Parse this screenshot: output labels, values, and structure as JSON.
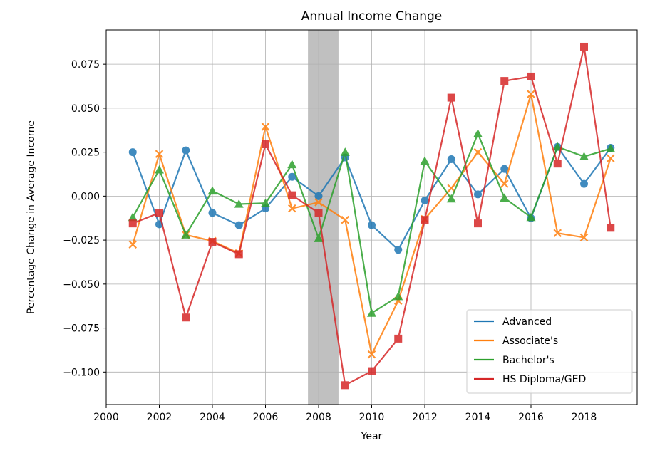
{
  "chart_data": {
    "type": "line",
    "title": "Annual Income Change",
    "xlabel": "Year",
    "ylabel": "Percentage Change in Average Income",
    "xlim": [
      2000,
      2020
    ],
    "ylim": [
      -0.1185,
      0.0945
    ],
    "x_ticks": [
      2000,
      2002,
      2004,
      2006,
      2008,
      2010,
      2012,
      2014,
      2016,
      2018
    ],
    "y_ticks": [
      -0.1,
      -0.075,
      -0.05,
      -0.025,
      0.0,
      0.025,
      0.05,
      0.075
    ],
    "y_tick_labels": [
      "−0.100",
      "−0.075",
      "−0.050",
      "−0.025",
      "0.000",
      "0.025",
      "0.050",
      "0.075"
    ],
    "grid": true,
    "legend_position": "lower-right",
    "shaded_region": {
      "x_start": 2007.6,
      "x_end": 2008.75,
      "color": "#c0c0c0"
    },
    "x": [
      2001,
      2002,
      2003,
      2004,
      2005,
      2006,
      2007,
      2008,
      2009,
      2010,
      2011,
      2012,
      2013,
      2014,
      2015,
      2016,
      2017,
      2018,
      2019
    ],
    "series": [
      {
        "name": "Advanced",
        "color": "#1f77b4",
        "marker": "circle",
        "values": [
          0.025,
          -0.016,
          0.026,
          -0.0095,
          -0.0165,
          -0.007,
          0.011,
          0.0,
          0.022,
          -0.0165,
          -0.0305,
          -0.0025,
          0.021,
          0.001,
          0.0155,
          -0.0125,
          0.028,
          0.007,
          0.0275
        ]
      },
      {
        "name": "Associate's",
        "color": "#ff7f0e",
        "marker": "x",
        "values": [
          -0.0275,
          0.024,
          -0.022,
          -0.0255,
          -0.0325,
          0.0395,
          -0.007,
          -0.0035,
          -0.0135,
          -0.09,
          -0.0595,
          -0.013,
          0.0045,
          0.025,
          0.007,
          0.058,
          -0.021,
          -0.0235,
          0.0215
        ]
      },
      {
        "name": "Bachelor's",
        "color": "#2ca02c",
        "marker": "triangle",
        "values": [
          -0.012,
          0.015,
          -0.022,
          0.003,
          -0.0045,
          -0.004,
          0.018,
          -0.024,
          0.025,
          -0.0665,
          -0.057,
          0.02,
          -0.0015,
          0.0355,
          -0.001,
          -0.012,
          0.028,
          0.0225,
          0.027
        ]
      },
      {
        "name": "HS Diploma/GED",
        "color": "#d62728",
        "marker": "square",
        "values": [
          -0.0155,
          -0.0095,
          -0.069,
          -0.026,
          -0.033,
          0.0295,
          0.0005,
          -0.0095,
          -0.1075,
          -0.0995,
          -0.081,
          -0.0135,
          0.056,
          -0.0155,
          0.0655,
          0.068,
          0.0185,
          0.085,
          -0.018
        ]
      }
    ]
  }
}
